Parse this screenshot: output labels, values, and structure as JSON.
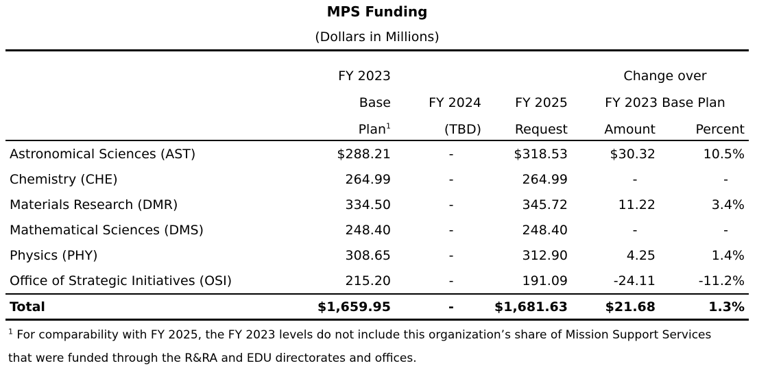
{
  "title": "MPS Funding",
  "subtitle": "(Dollars in Millions)",
  "header": {
    "base_line1": "FY 2023",
    "base_line2": "Base",
    "base_line3": "Plan",
    "base_sup": "1",
    "tbd_line1": "FY 2024",
    "tbd_line2": "(TBD)",
    "req_line1": "FY 2025",
    "req_line2": "Request",
    "change_line1": "Change over",
    "change_line2": "FY 2023 Base Plan",
    "amount": "Amount",
    "percent": "Percent"
  },
  "rows": [
    {
      "label": "Astronomical Sciences (AST)",
      "base": "$288.21",
      "tbd": "-",
      "req": "$318.53",
      "amt": "$30.32",
      "pct": "10.5%"
    },
    {
      "label": "Chemistry (CHE)",
      "base": "264.99",
      "tbd": "-",
      "req": "264.99",
      "amt": "-",
      "pct": "-"
    },
    {
      "label": "Materials Research (DMR)",
      "base": "334.50",
      "tbd": "-",
      "req": "345.72",
      "amt": "11.22",
      "pct": "3.4%"
    },
    {
      "label": "Mathematical Sciences (DMS)",
      "base": "248.40",
      "tbd": "-",
      "req": "248.40",
      "amt": "-",
      "pct": "-"
    },
    {
      "label": "Physics (PHY)",
      "base": "308.65",
      "tbd": "-",
      "req": "312.90",
      "amt": "4.25",
      "pct": "1.4%"
    },
    {
      "label": "Office of Strategic Initiatives (OSI)",
      "base": "215.20",
      "tbd": "-",
      "req": "191.09",
      "amt": "-24.11",
      "pct": "-11.2%"
    }
  ],
  "total": {
    "label": "Total",
    "base": "$1,659.95",
    "tbd": "-",
    "req": "$1,681.63",
    "amt": "$21.68",
    "pct": "1.3%"
  },
  "footnote": {
    "marker": "1",
    "line1": "For comparability with FY 2025, the FY 2023 levels do not include this organization’s share of Mission Support Services",
    "line2": "that were funded through the R&RA and EDU directorates and offices."
  }
}
